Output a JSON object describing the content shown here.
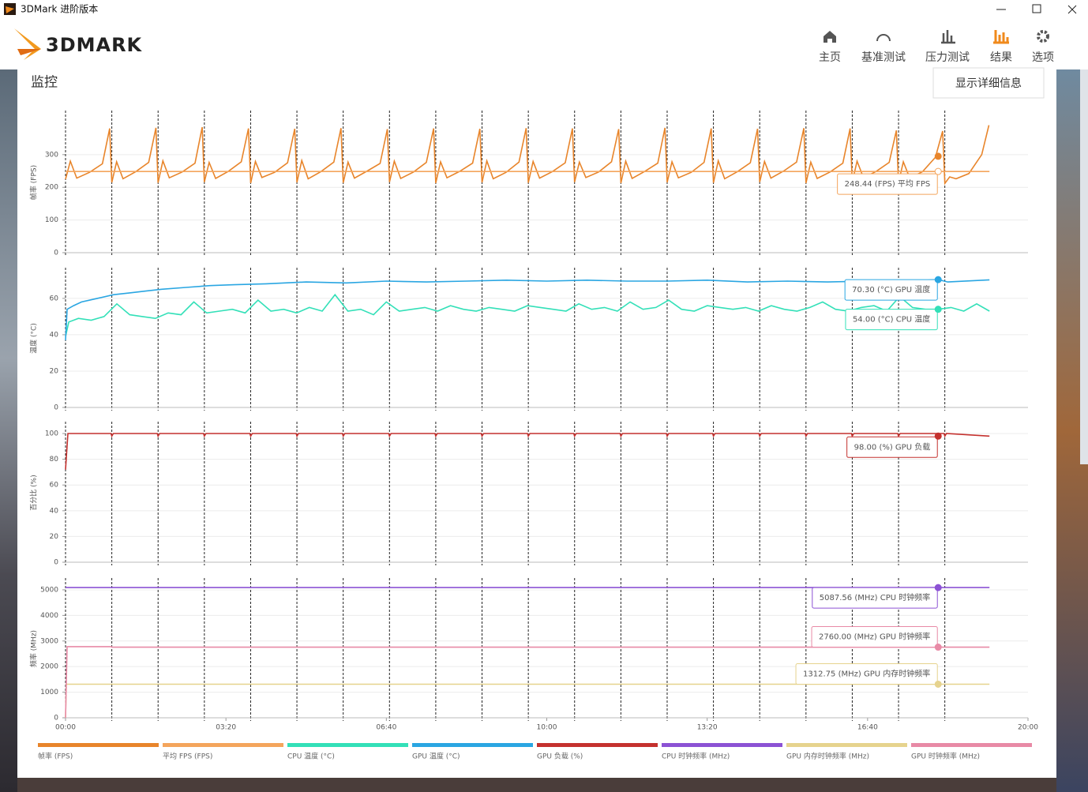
{
  "window": {
    "title": "3DMark 进阶版本"
  },
  "header": {
    "logo": "3DMARK",
    "nav": [
      "主页",
      "基准测试",
      "压力测试",
      "结果",
      "选项"
    ],
    "active_index": 3
  },
  "section": {
    "title": "监控",
    "button": "显示详细信息"
  },
  "loop_markers": [
    0,
    57.7,
    115.4,
    173.1,
    230.8,
    288.5,
    346.2,
    403.9,
    461.6,
    519.3,
    577,
    634.7,
    692.4,
    750.1,
    807.8,
    865.5,
    923.2,
    980.9,
    1038.6,
    1096.3
  ],
  "chart_data": [
    {
      "type": "line",
      "y_label": "帧率 (FPS)",
      "xlim": [
        0,
        1200
      ],
      "ylim": [
        0,
        430
      ],
      "yticks": [
        0,
        100,
        200,
        300
      ],
      "grid": true,
      "cursor_x": 1088,
      "series": [
        {
          "name": "帧率 (FPS)",
          "color": "#e8852b",
          "cursor_value": 295,
          "x": [
            0,
            6,
            14,
            30,
            46,
            55,
            57.7,
            63.7,
            71.7,
            87.7,
            103.7,
            112.7,
            115.4,
            121.4,
            129.4,
            145.4,
            161.4,
            170.4,
            173.1,
            179.1,
            187.1,
            203.1,
            219.1,
            228.1,
            230.8,
            236.8,
            244.8,
            260.8,
            276.8,
            285.8,
            288.5,
            294.5,
            302.5,
            318.5,
            334.5,
            343.5,
            346.2,
            352.2,
            360.2,
            376.2,
            392.2,
            401.2,
            403.9,
            409.9,
            417.9,
            433.9,
            449.9,
            458.9,
            461.6,
            467.6,
            475.6,
            491.6,
            507.6,
            516.6,
            519.3,
            525.3,
            533.3,
            549.3,
            565.3,
            574.3,
            577,
            583,
            591,
            607,
            623,
            632,
            634.7,
            640.7,
            648.7,
            664.7,
            680.7,
            689.7,
            692.4,
            698.4,
            706.4,
            722.4,
            738.4,
            747.4,
            750.1,
            756.1,
            764.1,
            780.1,
            796.1,
            805.1,
            807.8,
            813.8,
            821.8,
            837.8,
            853.8,
            862.8,
            865.5,
            871.5,
            879.5,
            895.5,
            911.5,
            920.5,
            923.2,
            929.2,
            937.2,
            953.2,
            969.2,
            978.2,
            980.9,
            986.9,
            994.9,
            1010.9,
            1026.9,
            1035.9,
            1038.6,
            1044.6,
            1052.6,
            1068.6,
            1084.6,
            1093.6,
            1096.3,
            1102.3,
            1110.3,
            1126.3,
            1142.3,
            1151.3
          ],
          "values": [
            225,
            280,
            228,
            246,
            272,
            380,
            215,
            278,
            226,
            248,
            276,
            382,
            214,
            281,
            229,
            247,
            274,
            384,
            216,
            276,
            227,
            249,
            278,
            380,
            213,
            279,
            230,
            246,
            275,
            379,
            215,
            282,
            226,
            248,
            277,
            381,
            214,
            277,
            228,
            250,
            273,
            378,
            216,
            280,
            227,
            247,
            276,
            380,
            213,
            278,
            229,
            249,
            274,
            379,
            215,
            281,
            226,
            246,
            277,
            381,
            214,
            279,
            228,
            248,
            275,
            380,
            216,
            277,
            230,
            247,
            278,
            378,
            213,
            280,
            227,
            249,
            274,
            382,
            215,
            278,
            229,
            246,
            276,
            380,
            214,
            281,
            226,
            248,
            275,
            379,
            216,
            279,
            228,
            250,
            277,
            381,
            213,
            277,
            227,
            247,
            274,
            380,
            215,
            280,
            229,
            249,
            276,
            374,
            214,
            278,
            228,
            248,
            292,
            372,
            212,
            232,
            226,
            242,
            300,
            390
          ]
        },
        {
          "name": "平均 FPS (FPS)",
          "color": "#f4a55c",
          "cursor_value": 248.44,
          "cursor_label": "248.44 (FPS) 平均 FPS",
          "x": [
            0,
            1152
          ],
          "values": [
            248.44,
            248.44
          ]
        }
      ]
    },
    {
      "type": "line",
      "y_label": "温度 (°C)",
      "xlim": [
        0,
        1200
      ],
      "ylim": [
        0,
        76
      ],
      "yticks": [
        0,
        20,
        40,
        60
      ],
      "grid": true,
      "cursor_x": 1088,
      "series": [
        {
          "name": "CPU 温度 (°C)",
          "color": "#33e0b8",
          "cursor_value": 54,
          "cursor_label": "54.00 (°C) CPU 温度",
          "x": [
            0,
            4,
            16,
            32,
            48,
            64,
            80,
            96,
            112,
            128,
            144,
            160,
            176,
            192,
            208,
            224,
            240,
            256,
            272,
            288,
            304,
            320,
            336,
            352,
            368,
            384,
            400,
            416,
            432,
            448,
            464,
            480,
            496,
            512,
            528,
            544,
            560,
            576,
            592,
            608,
            624,
            640,
            656,
            672,
            688,
            704,
            720,
            736,
            752,
            768,
            784,
            800,
            816,
            832,
            848,
            864,
            880,
            896,
            912,
            928,
            944,
            960,
            976,
            992,
            1008,
            1024,
            1040,
            1056,
            1072,
            1088,
            1104,
            1120,
            1136,
            1152
          ],
          "values": [
            39,
            47,
            49,
            48,
            50,
            57,
            51,
            50,
            49,
            52,
            51,
            58,
            52,
            53,
            54,
            52,
            59,
            53,
            54,
            52,
            55,
            53,
            62,
            53,
            54,
            51,
            58,
            53,
            54,
            55,
            53,
            56,
            54,
            53,
            55,
            54,
            53,
            56,
            55,
            54,
            53,
            57,
            54,
            55,
            53,
            58,
            54,
            55,
            59,
            54,
            53,
            56,
            55,
            54,
            55,
            53,
            56,
            54,
            53,
            55,
            58,
            54,
            53,
            55,
            56,
            53,
            61,
            55,
            54,
            54,
            55,
            53,
            57,
            53
          ]
        },
        {
          "name": "GPU 温度 (°C)",
          "color": "#2aa6e2",
          "cursor_value": 70.3,
          "cursor_label": "70.30 (°C) GPU 温度",
          "x": [
            0,
            2,
            10,
            20,
            40,
            60,
            80,
            100,
            120,
            150,
            180,
            210,
            250,
            300,
            350,
            400,
            450,
            500,
            550,
            600,
            650,
            700,
            750,
            800,
            850,
            900,
            950,
            1000,
            1050,
            1088,
            1100,
            1152
          ],
          "values": [
            37,
            54,
            56,
            58,
            60,
            62,
            63,
            64,
            65,
            66,
            67,
            67.5,
            68,
            69,
            68.5,
            69.5,
            69,
            69.5,
            70,
            69.5,
            70,
            69.5,
            69.5,
            70,
            69,
            69.5,
            69,
            69.5,
            69.5,
            70.3,
            69,
            70.2
          ]
        }
      ]
    },
    {
      "type": "line",
      "y_label": "百分比 (%)",
      "xlim": [
        0,
        1200
      ],
      "ylim": [
        0,
        108
      ],
      "yticks": [
        0,
        20,
        40,
        60,
        80,
        100
      ],
      "grid": true,
      "cursor_x": 1088,
      "series": [
        {
          "name": "GPU 负载 (%)",
          "color": "#c4312e",
          "cursor_value": 98,
          "cursor_label": "98.00 (%) GPU 负载",
          "x": [
            0,
            3,
            56.7,
            57.7,
            59.7,
            114.4,
            115.4,
            117.4,
            172.1,
            173.1,
            175.1,
            229.8,
            230.8,
            232.8,
            287.5,
            288.5,
            290.5,
            345.2,
            346.2,
            348.2,
            402.9,
            403.9,
            405.9,
            460.6,
            461.6,
            463.6,
            518.3,
            519.3,
            521.3,
            576,
            577,
            579,
            633.7,
            634.7,
            636.7,
            691.4,
            692.4,
            694.4,
            749.1,
            750.1,
            752.1,
            806.8,
            807.8,
            809.8,
            864.5,
            865.5,
            867.5,
            922.2,
            923.2,
            925.2,
            979.9,
            980.9,
            982.9,
            1037.6,
            1038.6,
            1040.6,
            1095.3,
            1096.3,
            1098.3,
            1152
          ],
          "values": [
            72,
            100,
            100,
            98,
            100,
            100,
            98,
            100,
            100,
            98,
            100,
            100,
            98,
            100,
            100,
            98,
            100,
            100,
            98,
            100,
            100,
            98,
            100,
            100,
            98,
            100,
            100,
            98,
            100,
            100,
            98,
            100,
            100,
            98,
            100,
            100,
            98,
            100,
            100,
            98,
            100,
            100,
            98,
            100,
            100,
            98,
            100,
            100,
            98,
            100,
            100,
            98,
            100,
            100,
            98,
            100,
            100,
            98,
            100,
            98
          ]
        }
      ]
    },
    {
      "type": "line",
      "y_label": "频率 (MHz)",
      "xlim": [
        0,
        1200
      ],
      "ylim": [
        0,
        5400
      ],
      "yticks": [
        0,
        1000,
        2000,
        3000,
        4000,
        5000
      ],
      "grid": true,
      "cursor_x": 1088,
      "xticks": [
        {
          "value": 0,
          "label": "00:00"
        },
        {
          "value": 200,
          "label": "03:20"
        },
        {
          "value": 400,
          "label": "06:40"
        },
        {
          "value": 600,
          "label": "10:00"
        },
        {
          "value": 800,
          "label": "13:20"
        },
        {
          "value": 1000,
          "label": "16:40"
        },
        {
          "value": 1200,
          "label": "20:00"
        }
      ],
      "series": [
        {
          "name": "CPU 时钟频率 (MHz)",
          "color": "#8c52d4",
          "cursor_value": 5087.56,
          "cursor_label": "5087.56 (MHz) CPU 时钟频率",
          "x": [
            0,
            1152
          ],
          "values": [
            5087.56,
            5087.56
          ]
        },
        {
          "name": "GPU 内存时钟频率 (MHz)",
          "color": "#e6d38e",
          "cursor_value": 1312.75,
          "cursor_label": "1312.75 (MHz) GPU 内存时钟频率",
          "x": [
            0,
            1,
            1152
          ],
          "values": [
            0,
            1312.75,
            1312.75
          ]
        },
        {
          "name": "GPU 时钟频率 (MHz)",
          "color": "#e88aa6",
          "cursor_value": 2760,
          "cursor_label": "2760.00 (MHz) GPU 时钟频率",
          "x": [
            0,
            2,
            57,
            58,
            1152
          ],
          "values": [
            0,
            2780,
            2780,
            2760,
            2760
          ]
        }
      ]
    }
  ]
}
